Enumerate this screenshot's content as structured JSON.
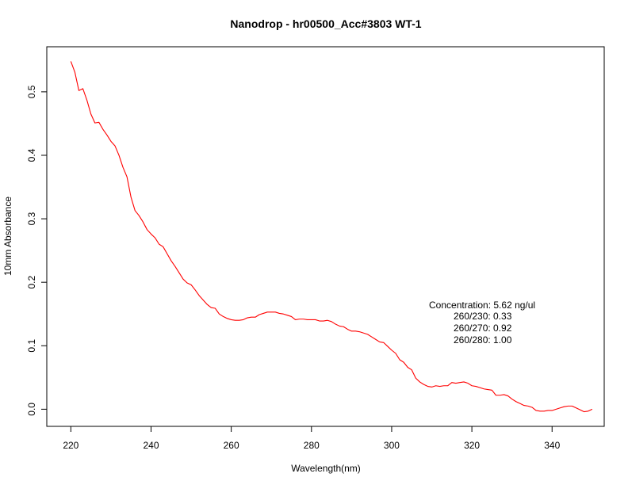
{
  "chart_data": {
    "type": "line",
    "title": "Nanodrop - hr00500_Acc#3803  WT-1",
    "xlabel": "Wavelength(nm)",
    "ylabel": "10mm Absorbance",
    "xlim": [
      214,
      353
    ],
    "ylim": [
      -0.027,
      0.571
    ],
    "x_ticks": [
      220,
      240,
      260,
      280,
      300,
      320,
      340
    ],
    "y_ticks": [
      0.0,
      0.1,
      0.2,
      0.3,
      0.4,
      0.5
    ],
    "x_tick_labels": [
      "220",
      "240",
      "260",
      "280",
      "300",
      "320",
      "340"
    ],
    "y_tick_labels": [
      "0.0",
      "0.1",
      "0.2",
      "0.3",
      "0.4",
      "0.5"
    ],
    "grid": false,
    "series": [
      {
        "color": "#ff0000",
        "x": [
          220,
          221,
          222,
          223,
          224,
          225,
          226,
          227,
          228,
          229,
          230,
          231,
          232,
          233,
          234,
          235,
          236,
          237,
          238,
          239,
          240,
          241,
          242,
          243,
          244,
          245,
          246,
          247,
          248,
          249,
          250,
          251,
          252,
          253,
          254,
          255,
          256,
          257,
          258,
          259,
          260,
          261,
          262,
          263,
          264,
          265,
          266,
          267,
          268,
          269,
          270,
          271,
          272,
          273,
          274,
          275,
          276,
          277,
          278,
          279,
          280,
          281,
          282,
          283,
          284,
          285,
          286,
          287,
          288,
          289,
          290,
          291,
          292,
          293,
          294,
          295,
          296,
          297,
          298,
          299,
          300,
          301,
          302,
          303,
          304,
          305,
          306,
          307,
          308,
          309,
          310,
          311,
          312,
          313,
          314,
          315,
          316,
          317,
          318,
          319,
          320,
          321,
          322,
          323,
          324,
          325,
          326,
          327,
          328,
          329,
          330,
          331,
          332,
          333,
          334,
          335,
          336,
          337,
          338,
          339,
          340,
          341,
          342,
          343,
          344,
          345,
          346,
          347,
          348,
          349,
          350
        ],
        "y": [
          0.548,
          0.531,
          0.502,
          0.505,
          0.487,
          0.465,
          0.451,
          0.452,
          0.441,
          0.432,
          0.422,
          0.415,
          0.4,
          0.381,
          0.366,
          0.334,
          0.313,
          0.305,
          0.295,
          0.283,
          0.276,
          0.27,
          0.26,
          0.256,
          0.245,
          0.234,
          0.225,
          0.215,
          0.205,
          0.199,
          0.196,
          0.188,
          0.179,
          0.172,
          0.165,
          0.16,
          0.159,
          0.15,
          0.146,
          0.143,
          0.141,
          0.14,
          0.14,
          0.141,
          0.144,
          0.145,
          0.145,
          0.149,
          0.151,
          0.153,
          0.153,
          0.153,
          0.151,
          0.15,
          0.148,
          0.146,
          0.141,
          0.142,
          0.142,
          0.141,
          0.141,
          0.141,
          0.139,
          0.139,
          0.14,
          0.138,
          0.134,
          0.131,
          0.13,
          0.126,
          0.123,
          0.123,
          0.122,
          0.12,
          0.118,
          0.114,
          0.11,
          0.106,
          0.105,
          0.099,
          0.093,
          0.088,
          0.078,
          0.074,
          0.066,
          0.062,
          0.049,
          0.043,
          0.039,
          0.036,
          0.035,
          0.037,
          0.036,
          0.037,
          0.037,
          0.042,
          0.041,
          0.042,
          0.043,
          0.041,
          0.037,
          0.036,
          0.034,
          0.032,
          0.031,
          0.03,
          0.022,
          0.022,
          0.023,
          0.021,
          0.016,
          0.012,
          0.009,
          0.006,
          0.005,
          0.003,
          -0.002,
          -0.003,
          -0.003,
          -0.002,
          -0.002,
          0.0,
          0.002,
          0.004,
          0.005,
          0.005,
          0.002,
          -0.001,
          -0.004,
          -0.003,
          0.0
        ]
      }
    ],
    "annotation": {
      "lines": [
        "Concentration: 5.62 ng/ul",
        "260/230: 0.33",
        "260/270: 0.92",
        "260/280: 1.00"
      ]
    }
  }
}
